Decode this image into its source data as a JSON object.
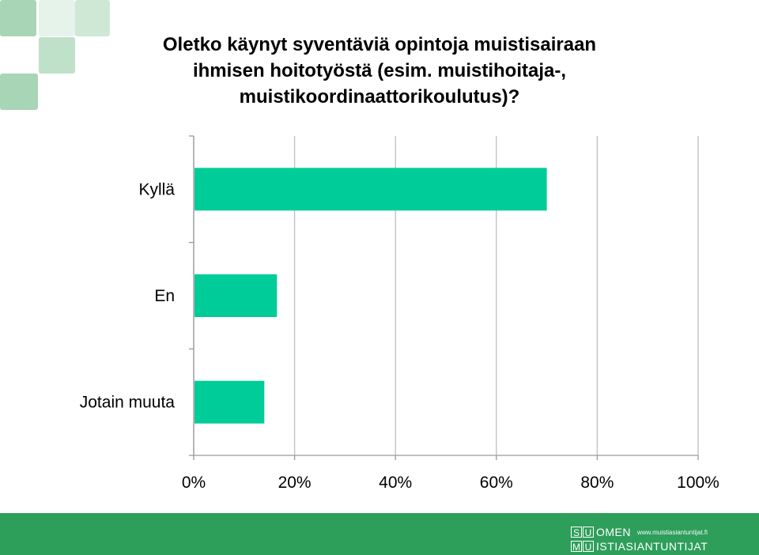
{
  "colors": {
    "bar": "#00cc99",
    "footer": "#2e9e5b",
    "deco_light": "#cfe8d6",
    "deco_mid": "#a8d5b5"
  },
  "chart_data": {
    "type": "bar",
    "orientation": "horizontal",
    "title_lines": [
      "Oletko käynyt syventäviä opintoja muistisairaan",
      "ihmisen hoitotyöstä (esim. muistihoitaja-,",
      "muistikoordinaattorikoulutus)?"
    ],
    "categories": [
      "Kyllä",
      "En",
      "Jotain muuta"
    ],
    "values": [
      70,
      16.5,
      14
    ],
    "xlim": [
      0,
      100
    ],
    "xticks": [
      "0%",
      "20%",
      "40%",
      "60%",
      "80%",
      "100%"
    ],
    "grid": true,
    "legend": "none"
  },
  "footer": {
    "logo_row1_letters": [
      "S",
      "U"
    ],
    "logo_row1_text": "OMEN",
    "logo_url": "www.muistiasiantuntijat.fi",
    "logo_row2_letters": [
      "M",
      "U"
    ],
    "logo_row2_text": "ISTIASIANTUNTIJAT"
  }
}
